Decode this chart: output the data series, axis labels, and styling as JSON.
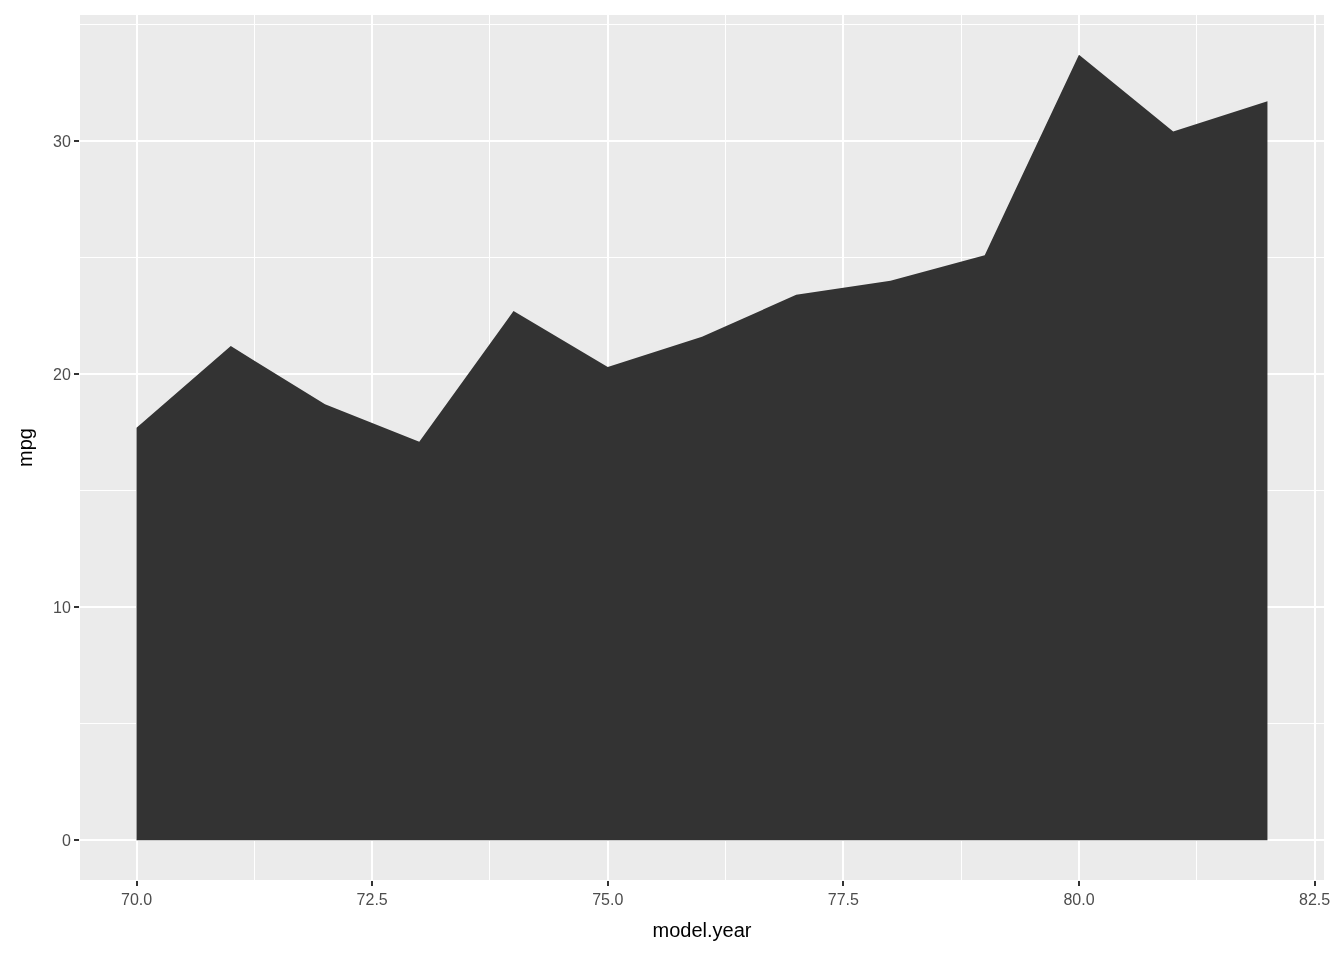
{
  "chart_data": {
    "type": "area",
    "xlabel": "model.year",
    "ylabel": "mpg",
    "x": [
      70,
      71,
      72,
      73,
      74,
      75,
      76,
      77,
      78,
      79,
      80,
      81,
      82
    ],
    "series": [
      {
        "color": "#333333",
        "values": [
          17.7,
          21.2,
          18.7,
          17.1,
          22.7,
          20.3,
          21.6,
          23.4,
          24.0,
          25.1,
          33.7,
          30.4,
          31.7
        ]
      }
    ],
    "xlim": [
      69.4,
      82.6
    ],
    "xticks": [
      {
        "value": 70,
        "label": "70.0"
      },
      72.5,
      {
        "value": 75,
        "label": "75.0"
      },
      77.5,
      {
        "value": 80,
        "label": "80.0"
      },
      82.5
    ],
    "ylim": [
      -1.7,
      35.4
    ],
    "yticks": [
      0,
      10,
      20,
      30
    ],
    "grid": true
  }
}
